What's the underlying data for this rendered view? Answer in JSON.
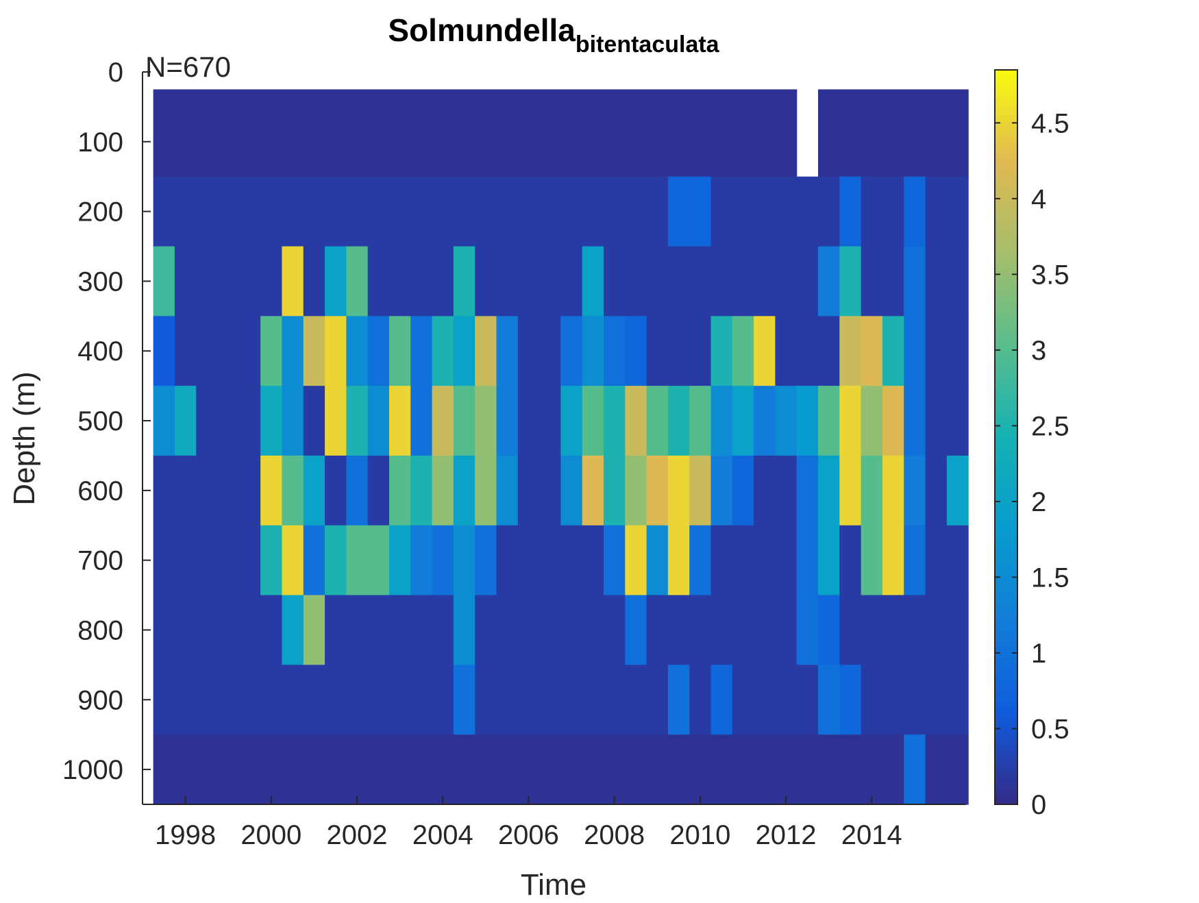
{
  "chart_data": {
    "type": "heatmap",
    "title": "Solmundella",
    "title_subscript": "bitentaculata",
    "annotation": "N=670",
    "x_label": "Time",
    "y_label": "Depth (m)",
    "xlim": [
      1997,
      2016.2
    ],
    "xticks": [
      1998,
      2000,
      2002,
      2004,
      2006,
      2008,
      2010,
      2012,
      2014
    ],
    "ylim": [
      0,
      1050
    ],
    "yticks": [
      0,
      100,
      200,
      300,
      400,
      500,
      600,
      700,
      800,
      900,
      1000
    ],
    "y_reversed": true,
    "x_edges": [
      1997.25,
      1997.75,
      1998.25,
      1998.75,
      1999.25,
      1999.75,
      2000.25,
      2000.75,
      2001.25,
      2001.75,
      2002.25,
      2002.75,
      2003.25,
      2003.75,
      2004.25,
      2004.75,
      2005.25,
      2005.75,
      2006.25,
      2006.75,
      2007.25,
      2007.75,
      2008.25,
      2008.75,
      2009.25,
      2009.75,
      2010.25,
      2010.75,
      2011.25,
      2011.75,
      2012.25,
      2012.75,
      2013.25,
      2013.75,
      2014.25,
      2014.75,
      2015.25,
      2015.75,
      2016.25
    ],
    "y_edges": [
      25,
      150,
      250,
      350,
      450,
      550,
      650,
      750,
      850,
      950,
      1050
    ],
    "z": [
      [
        0.1,
        0.1,
        0.1,
        0.1,
        0.1,
        0.1,
        0.1,
        0.1,
        0.1,
        0.1,
        0.1,
        0.1,
        0.1,
        0.1,
        0.1,
        0.1,
        0.1,
        0.1,
        0.1,
        0.1,
        0.1,
        0.1,
        0.1,
        0.1,
        0.1,
        0.1,
        0.1,
        0.1,
        0.1,
        0.1,
        null,
        0.1,
        0.1,
        0.1,
        0.1,
        0.1,
        0.1,
        0.1
      ],
      [
        0.2,
        0.2,
        0.2,
        0.2,
        0.2,
        0.2,
        0.2,
        0.2,
        0.2,
        0.2,
        0.2,
        0.2,
        0.2,
        0.2,
        0.2,
        0.2,
        0.2,
        0.2,
        0.2,
        0.2,
        0.2,
        0.2,
        0.2,
        0.2,
        0.8,
        0.8,
        0.2,
        0.2,
        0.2,
        0.2,
        0.2,
        0.2,
        0.8,
        0.2,
        0.2,
        0.8,
        0.2,
        0.2
      ],
      [
        2.8,
        0.2,
        0.2,
        0.2,
        0.2,
        0.2,
        4.5,
        0.2,
        2.0,
        3.0,
        0.2,
        0.2,
        0.2,
        0.2,
        2.5,
        0.2,
        0.2,
        0.2,
        0.2,
        0.2,
        2.0,
        0.2,
        0.2,
        0.2,
        0.2,
        0.2,
        0.2,
        0.2,
        0.2,
        0.2,
        0.2,
        1.2,
        2.5,
        0.2,
        0.2,
        1.0,
        0.2,
        0.2
      ],
      [
        0.6,
        0.2,
        0.2,
        0.2,
        0.2,
        3.0,
        1.5,
        4.0,
        4.5,
        1.5,
        1.0,
        3.0,
        1.0,
        2.5,
        2.0,
        4.0,
        1.2,
        0.2,
        0.2,
        1.0,
        1.5,
        1.0,
        0.8,
        0.2,
        0.2,
        0.2,
        2.5,
        3.0,
        4.5,
        0.2,
        0.2,
        0.2,
        4.0,
        4.2,
        2.5,
        1.0,
        0.2,
        0.2
      ],
      [
        1.5,
        2.2,
        0.2,
        0.2,
        0.2,
        2.2,
        1.5,
        0.2,
        4.5,
        2.5,
        1.5,
        4.5,
        1.0,
        4.0,
        3.0,
        3.5,
        1.2,
        0.2,
        0.2,
        2.0,
        3.0,
        2.5,
        4.0,
        3.0,
        2.5,
        3.0,
        1.5,
        2.0,
        1.2,
        1.5,
        1.8,
        3.0,
        4.5,
        3.5,
        4.2,
        1.0,
        0.2,
        0.2
      ],
      [
        0.2,
        0.2,
        0.2,
        0.2,
        0.2,
        4.5,
        3.0,
        2.0,
        0.2,
        1.0,
        0.2,
        3.0,
        2.5,
        3.5,
        2.0,
        3.5,
        1.5,
        0.2,
        0.2,
        1.5,
        4.2,
        2.5,
        3.5,
        4.2,
        4.5,
        4.0,
        1.2,
        0.8,
        0.2,
        0.2,
        1.0,
        2.0,
        4.5,
        3.0,
        4.5,
        1.2,
        0.2,
        2.0
      ],
      [
        0.2,
        0.2,
        0.2,
        0.2,
        0.2,
        2.5,
        4.5,
        1.0,
        2.5,
        3.0,
        3.0,
        2.0,
        1.2,
        1.0,
        1.5,
        1.0,
        0.2,
        0.2,
        0.2,
        0.2,
        0.2,
        1.0,
        4.5,
        1.5,
        4.5,
        1.0,
        0.2,
        0.2,
        0.2,
        0.2,
        1.0,
        2.0,
        0.2,
        3.0,
        4.5,
        1.0,
        0.2,
        0.2
      ],
      [
        0.2,
        0.2,
        0.2,
        0.2,
        0.2,
        0.2,
        2.0,
        3.5,
        0.2,
        0.2,
        0.2,
        0.2,
        0.2,
        0.2,
        1.5,
        0.2,
        0.2,
        0.2,
        0.2,
        0.2,
        0.2,
        0.2,
        1.0,
        0.2,
        0.2,
        0.2,
        0.2,
        0.2,
        0.2,
        0.2,
        1.0,
        0.8,
        0.2,
        0.2,
        0.2,
        0.2,
        0.2,
        0.2
      ],
      [
        0.2,
        0.2,
        0.2,
        0.2,
        0.2,
        0.2,
        0.2,
        0.2,
        0.2,
        0.2,
        0.2,
        0.2,
        0.2,
        0.2,
        1.0,
        0.2,
        0.2,
        0.2,
        0.2,
        0.2,
        0.2,
        0.2,
        0.2,
        0.2,
        1.0,
        0.2,
        0.8,
        0.2,
        0.2,
        0.2,
        0.2,
        1.0,
        0.8,
        0.2,
        0.2,
        0.2,
        0.2,
        0.2
      ],
      [
        0.1,
        0.1,
        0.1,
        0.1,
        0.1,
        0.1,
        0.1,
        0.1,
        0.1,
        0.1,
        0.1,
        0.1,
        0.1,
        0.1,
        0.1,
        0.1,
        0.1,
        0.1,
        0.1,
        0.1,
        0.1,
        0.1,
        0.1,
        0.1,
        0.1,
        0.1,
        0.1,
        0.1,
        0.1,
        0.1,
        0.1,
        0.1,
        0.1,
        0.1,
        0.1,
        1.0,
        0.1,
        0.1
      ]
    ],
    "clim": [
      0,
      4.85
    ],
    "cticks": [
      0,
      0.5,
      1,
      1.5,
      2,
      2.5,
      3,
      3.5,
      4,
      4.5
    ],
    "colormap": [
      "#352a87",
      "#0f5cdd",
      "#127dd8",
      "#079ccf",
      "#15b1b4",
      "#59bd8c",
      "#a5be6b",
      "#e1b952",
      "#f9fb0e"
    ]
  }
}
